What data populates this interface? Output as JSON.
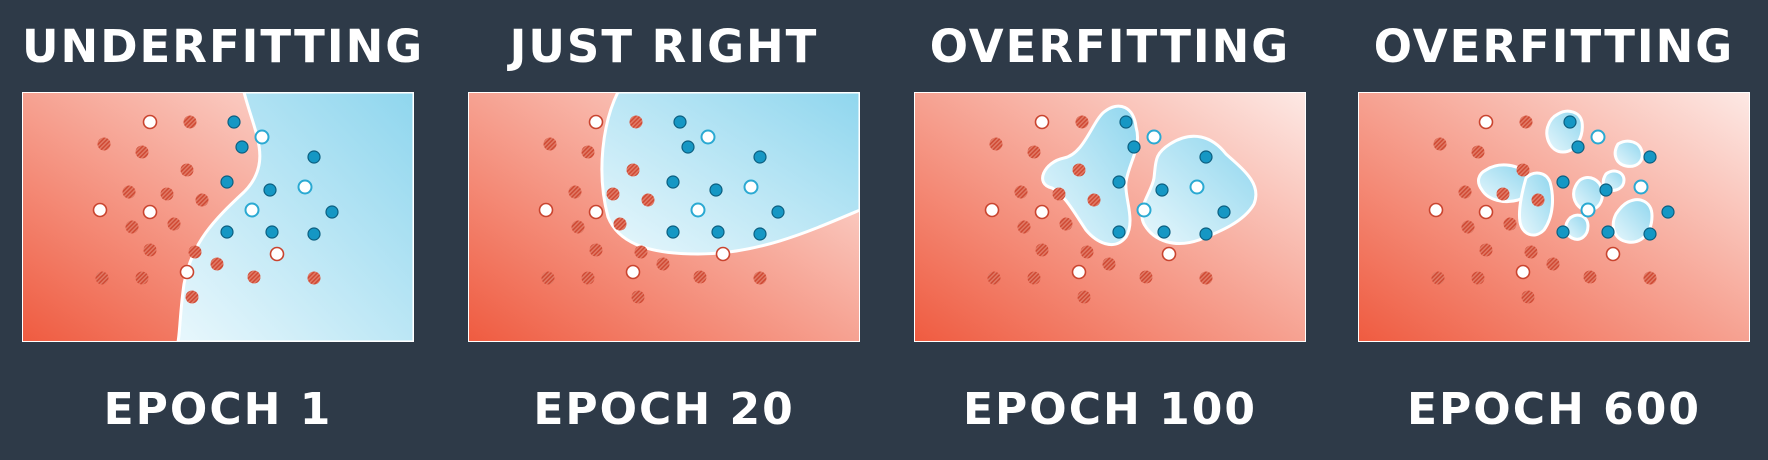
{
  "panels": [
    {
      "title": "UNDERFITTING",
      "epoch": "EPOCH 1"
    },
    {
      "title": "JUST RIGHT",
      "epoch": "EPOCH 20"
    },
    {
      "title": "OVERFITTING",
      "epoch": "EPOCH 100"
    },
    {
      "title": "OVERFITTING",
      "epoch": "EPOCH 600"
    }
  ],
  "colors": {
    "background": "#2e3a48",
    "red_region": "#ef5b40",
    "blue_region": "#8fd6ee",
    "red_point": "#d04a34",
    "blue_point": "#1597c4",
    "boundary": "#ffffff"
  }
}
